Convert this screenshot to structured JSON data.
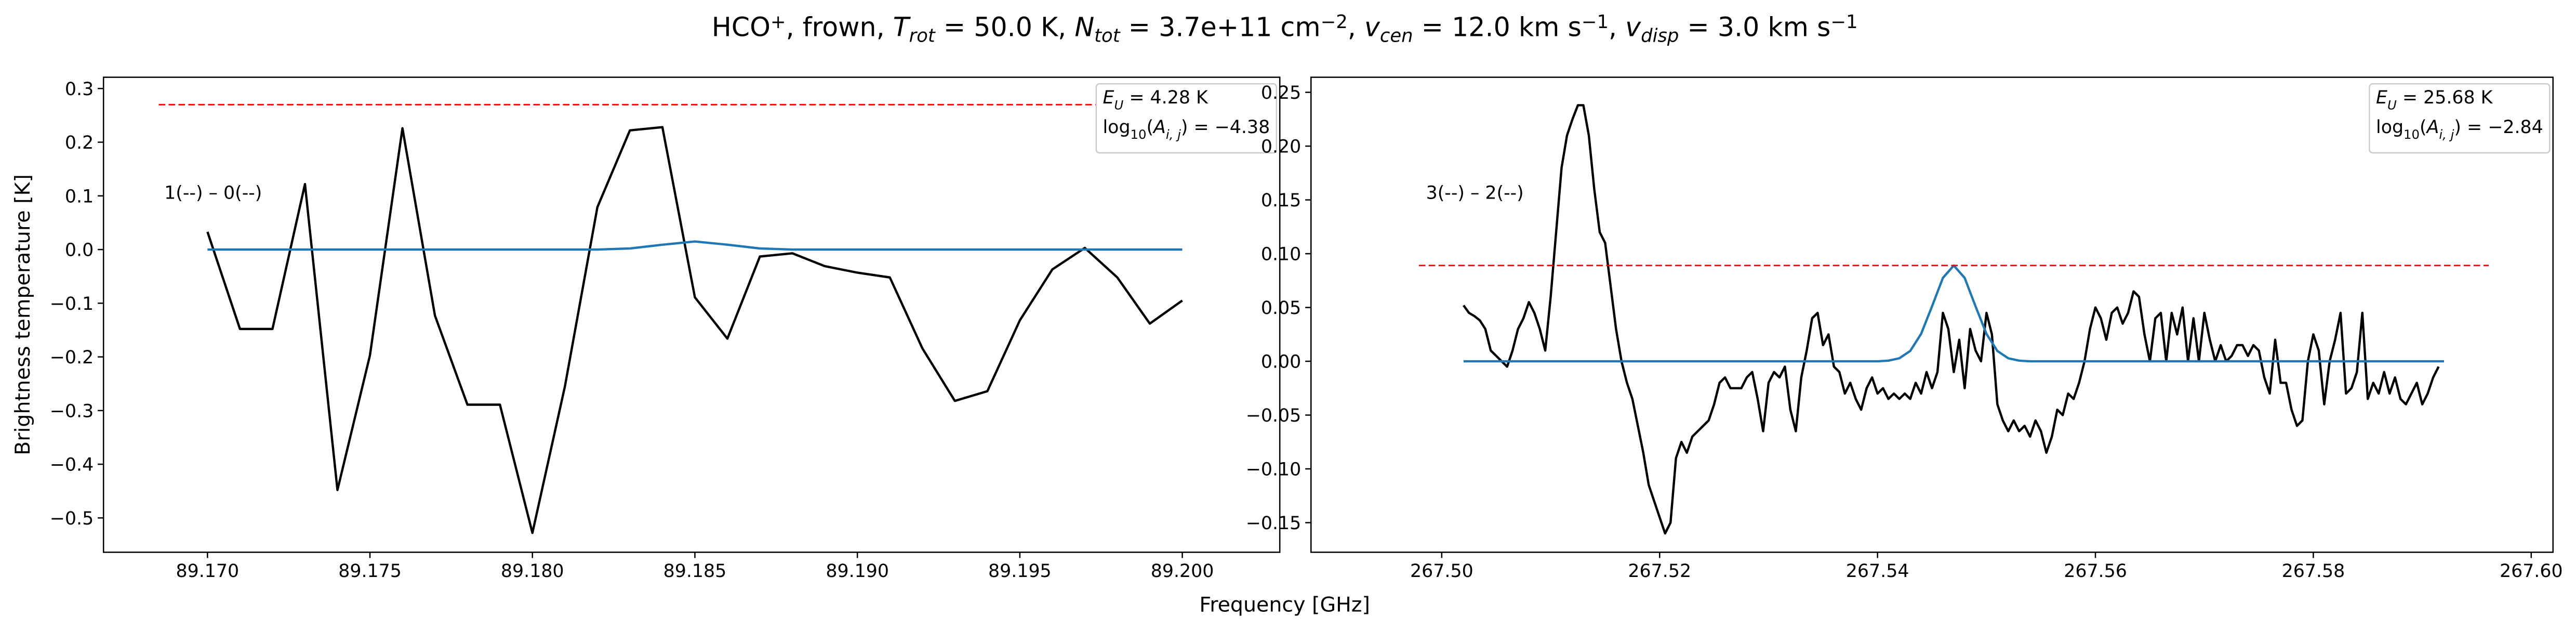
{
  "figure": {
    "title": [
      {
        "text": "HCO"
      },
      {
        "text": "+",
        "shift": "sup"
      },
      {
        "text": ", frown, "
      },
      {
        "text": "T",
        "italic": true
      },
      {
        "text": "rot",
        "shift": "sub",
        "italic": true
      },
      {
        "text": " =  50.0 K, "
      },
      {
        "text": "N",
        "italic": true
      },
      {
        "text": "tot",
        "shift": "sub",
        "italic": true
      },
      {
        "text": " =  3.7e+11 cm"
      },
      {
        "text": "−2",
        "shift": "sup"
      },
      {
        "text": ", "
      },
      {
        "text": "v",
        "italic": true
      },
      {
        "text": "cen",
        "shift": "sub",
        "italic": true
      },
      {
        "text": " =  12.0 km s"
      },
      {
        "text": "−1",
        "shift": "sup"
      },
      {
        "text": ", "
      },
      {
        "text": "v",
        "italic": true
      },
      {
        "text": "disp",
        "shift": "sub",
        "italic": true
      },
      {
        "text": " =  3.0 km s"
      },
      {
        "text": "−1",
        "shift": "sup"
      }
    ],
    "xlabel": "Frequency [GHz]",
    "ylabel": "Brightness temperature [K]"
  },
  "chart_data": [
    {
      "type": "line",
      "xlim": [
        89.1668,
        89.203
      ],
      "ylim": [
        -0.564,
        0.321
      ],
      "grid": false,
      "xticks": [
        {
          "value": 89.17,
          "label": "89.170"
        },
        89.175,
        {
          "value": 89.18,
          "label": "89.180"
        },
        89.185,
        {
          "value": 89.19,
          "label": "89.190"
        },
        89.195,
        {
          "value": 89.2,
          "label": "89.200"
        }
      ],
      "yticks": [
        {
          "value": -0.5,
          "label": "−0.5"
        },
        {
          "value": -0.4,
          "label": "−0.4"
        },
        {
          "value": -0.3,
          "label": "−0.3"
        },
        {
          "value": -0.2,
          "label": "−0.2"
        },
        {
          "value": -0.1,
          "label": "−0.1"
        },
        {
          "value": 0,
          "label": "0.0"
        },
        0.1,
        0.2,
        0.3
      ],
      "transition": "1(--) – 0(--)",
      "info": [
        [
          {
            "text": "E",
            "italic": true
          },
          {
            "text": "U",
            "shift": "sub",
            "italic": true
          },
          {
            "text": " = 4.28 K"
          }
        ],
        [
          {
            "text": "log"
          },
          {
            "text": "10",
            "shift": "sub"
          },
          {
            "text": "("
          },
          {
            "text": "A",
            "italic": true
          },
          {
            "text": "i, j",
            "shift": "sub",
            "italic": true
          },
          {
            "text": ") = −4.38"
          }
        ]
      ],
      "series": [
        {
          "color": "#000000",
          "x": [
            89.17,
            89.171,
            89.172,
            89.173,
            89.174,
            89.175,
            89.176,
            89.177,
            89.178,
            89.179,
            89.18,
            89.181,
            89.182,
            89.183,
            89.184,
            89.185,
            89.186,
            89.187,
            89.188,
            89.189,
            89.19,
            89.191,
            89.192,
            89.193,
            89.194,
            89.195,
            89.196,
            89.197,
            89.198,
            89.199,
            89.2
          ],
          "values": [
            0.033,
            -0.148,
            -0.148,
            0.122,
            -0.448,
            -0.197,
            0.226,
            -0.123,
            -0.289,
            -0.289,
            -0.528,
            -0.255,
            0.079,
            0.222,
            0.228,
            -0.089,
            -0.166,
            -0.013,
            -0.007,
            -0.031,
            -0.043,
            -0.052,
            -0.184,
            -0.282,
            -0.264,
            -0.132,
            -0.037,
            0.003,
            -0.052,
            -0.138,
            -0.095
          ]
        },
        {
          "color": "#1f77b4",
          "x": [
            89.17,
            89.171,
            89.172,
            89.173,
            89.174,
            89.175,
            89.176,
            89.177,
            89.178,
            89.179,
            89.18,
            89.181,
            89.182,
            89.183,
            89.184,
            89.185,
            89.186,
            89.187,
            89.188,
            89.189,
            89.19,
            89.191,
            89.192,
            89.193,
            89.194,
            89.195,
            89.196,
            89.197,
            89.198,
            89.199,
            89.2
          ],
          "values": [
            0,
            0,
            0,
            0,
            0,
            0,
            0,
            0,
            0,
            0,
            0,
            0,
            0,
            0.002,
            0.009,
            0.015,
            0.009,
            0.002,
            0,
            0,
            0,
            0,
            0,
            0,
            0,
            0,
            0,
            0,
            0,
            0,
            0
          ]
        },
        {
          "color": "#ff0000",
          "dashed": true,
          "x": [
            89.1685,
            89.2013
          ],
          "values": [
            0.27,
            0.27
          ]
        }
      ]
    },
    {
      "type": "line",
      "xlim": [
        267.488,
        267.602
      ],
      "ylim": [
        -0.1775,
        0.264
      ],
      "grid": false,
      "xticks": [
        {
          "value": 267.5,
          "label": "267.50"
        },
        267.52,
        267.54,
        267.56,
        267.58,
        {
          "value": 267.6,
          "label": "267.60"
        }
      ],
      "yticks": [
        {
          "value": -0.15,
          "label": "−0.15"
        },
        {
          "value": -0.1,
          "label": "−0.10"
        },
        {
          "value": -0.05,
          "label": "−0.05"
        },
        {
          "value": 0,
          "label": "0.00"
        },
        0.05,
        {
          "value": 0.1,
          "label": "0.10"
        },
        0.15,
        {
          "value": 0.2,
          "label": "0.20"
        },
        0.25
      ],
      "transition": "3(--) – 2(--)",
      "info": [
        [
          {
            "text": "E",
            "italic": true
          },
          {
            "text": "U",
            "shift": "sub",
            "italic": true
          },
          {
            "text": " = 25.68 K"
          }
        ],
        [
          {
            "text": "log"
          },
          {
            "text": "10",
            "shift": "sub"
          },
          {
            "text": "("
          },
          {
            "text": "A",
            "italic": true
          },
          {
            "text": "i, j",
            "shift": "sub",
            "italic": true
          },
          {
            "text": ") = −2.84"
          }
        ]
      ],
      "series": [
        {
          "color": "#000000",
          "x": [
            267.502,
            267.5025,
            267.503,
            267.5035,
            267.504,
            267.5045,
            267.505,
            267.5055,
            267.506,
            267.5065,
            267.507,
            267.5075,
            267.508,
            267.5085,
            267.509,
            267.5095,
            267.51,
            267.5105,
            267.511,
            267.5115,
            267.512,
            267.5125,
            267.513,
            267.5135,
            267.514,
            267.5145,
            267.515,
            267.5155,
            267.516,
            267.5165,
            267.517,
            267.5175,
            267.518,
            267.5185,
            267.519,
            267.5195,
            267.52,
            267.5205,
            267.521,
            267.5215,
            267.522,
            267.5225,
            267.523,
            267.5235,
            267.524,
            267.5245,
            267.525,
            267.5255,
            267.526,
            267.5265,
            267.527,
            267.5275,
            267.528,
            267.5285,
            267.529,
            267.5295,
            267.53,
            267.5305,
            267.531,
            267.5315,
            267.532,
            267.5325,
            267.533,
            267.5335,
            267.534,
            267.5345,
            267.535,
            267.5355,
            267.536,
            267.5365,
            267.537,
            267.5375,
            267.538,
            267.5385,
            267.539,
            267.5395,
            267.54,
            267.5405,
            267.541,
            267.5415,
            267.542,
            267.5425,
            267.543,
            267.5435,
            267.544,
            267.5445,
            267.545,
            267.5455,
            267.546,
            267.5465,
            267.547,
            267.5475,
            267.548,
            267.5485,
            267.549,
            267.5495,
            267.55,
            267.5505,
            267.551,
            267.5515,
            267.552,
            267.5525,
            267.553,
            267.5535,
            267.554,
            267.5545,
            267.555,
            267.5555,
            267.556,
            267.5565,
            267.557,
            267.5575,
            267.558,
            267.5585,
            267.559,
            267.5595,
            267.56,
            267.5605,
            267.561,
            267.5615,
            267.562,
            267.5625,
            267.563,
            267.5635,
            267.564,
            267.5645,
            267.565,
            267.5655,
            267.566,
            267.5665,
            267.567,
            267.5675,
            267.568,
            267.5685,
            267.569,
            267.5695,
            267.57,
            267.5705,
            267.571,
            267.5715,
            267.572,
            267.5725,
            267.573,
            267.5735,
            267.574,
            267.5745,
            267.575,
            267.5755,
            267.576,
            267.5765,
            267.577,
            267.5775,
            267.578,
            267.5785,
            267.579,
            267.5795,
            267.58,
            267.5805,
            267.581,
            267.5815,
            267.582,
            267.5825,
            267.583,
            267.5835,
            267.584,
            267.5845,
            267.585,
            267.5855,
            267.586,
            267.5865,
            267.587,
            267.5875,
            267.588,
            267.5885,
            267.589,
            267.5895,
            267.59,
            267.5905,
            267.591,
            267.5915
          ],
          "values": [
            0.052,
            0.045,
            0.042,
            0.038,
            0.03,
            0.01,
            0.005,
            0.0,
            -0.005,
            0.01,
            0.03,
            0.04,
            0.055,
            0.045,
            0.03,
            0.01,
            0.06,
            0.12,
            0.18,
            0.21,
            0.225,
            0.238,
            0.238,
            0.21,
            0.16,
            0.12,
            0.11,
            0.07,
            0.03,
            0.0,
            -0.02,
            -0.035,
            -0.06,
            -0.085,
            -0.115,
            -0.13,
            -0.145,
            -0.16,
            -0.15,
            -0.09,
            -0.075,
            -0.085,
            -0.07,
            -0.065,
            -0.06,
            -0.055,
            -0.04,
            -0.02,
            -0.015,
            -0.025,
            -0.025,
            -0.025,
            -0.015,
            -0.01,
            -0.035,
            -0.065,
            -0.02,
            -0.01,
            -0.015,
            -0.005,
            -0.045,
            -0.065,
            -0.015,
            0.01,
            0.04,
            0.045,
            0.015,
            0.025,
            -0.005,
            -0.01,
            -0.03,
            -0.02,
            -0.035,
            -0.045,
            -0.025,
            -0.015,
            -0.03,
            -0.025,
            -0.035,
            -0.03,
            -0.035,
            -0.03,
            -0.035,
            -0.02,
            -0.03,
            -0.01,
            -0.025,
            -0.01,
            0.045,
            0.03,
            -0.01,
            0.02,
            -0.025,
            0.03,
            0.01,
            0.0,
            0.045,
            0.025,
            -0.04,
            -0.055,
            -0.065,
            -0.055,
            -0.065,
            -0.06,
            -0.07,
            -0.055,
            -0.065,
            -0.085,
            -0.07,
            -0.045,
            -0.05,
            -0.03,
            -0.035,
            -0.02,
            0.0,
            0.03,
            0.05,
            0.04,
            0.02,
            0.045,
            0.05,
            0.035,
            0.045,
            0.065,
            0.06,
            0.025,
            0.0,
            0.04,
            0.045,
            0.0,
            0.045,
            0.025,
            0.05,
            0.0,
            0.04,
            0.0,
            0.045,
            0.02,
            0.0,
            0.015,
            0.0,
            0.005,
            0.015,
            0.015,
            0.005,
            0.015,
            0.01,
            -0.015,
            -0.03,
            0.02,
            -0.02,
            -0.02,
            -0.045,
            -0.06,
            -0.055,
            0.0,
            0.025,
            0.01,
            -0.04,
            0.0,
            0.02,
            0.045,
            -0.03,
            -0.025,
            -0.01,
            0.045,
            -0.035,
            -0.02,
            -0.03,
            -0.01,
            -0.03,
            -0.015,
            -0.035,
            -0.04,
            -0.03,
            -0.02,
            -0.04,
            -0.03,
            -0.015,
            -0.005
          ]
        },
        {
          "color": "#1f77b4",
          "x": [
            267.502,
            267.54,
            267.541,
            267.542,
            267.543,
            267.544,
            267.545,
            267.546,
            267.547,
            267.548,
            267.549,
            267.55,
            267.551,
            267.552,
            267.553,
            267.554,
            267.592
          ],
          "values": [
            0,
            0,
            0.0006,
            0.0028,
            0.0096,
            0.0255,
            0.051,
            0.0775,
            0.089,
            0.0775,
            0.051,
            0.0255,
            0.0096,
            0.0028,
            0.0006,
            0,
            0
          ]
        },
        {
          "color": "#ff0000",
          "dashed": true,
          "x": [
            267.4979,
            267.5961
          ],
          "values": [
            0.089,
            0.089
          ]
        }
      ]
    }
  ]
}
